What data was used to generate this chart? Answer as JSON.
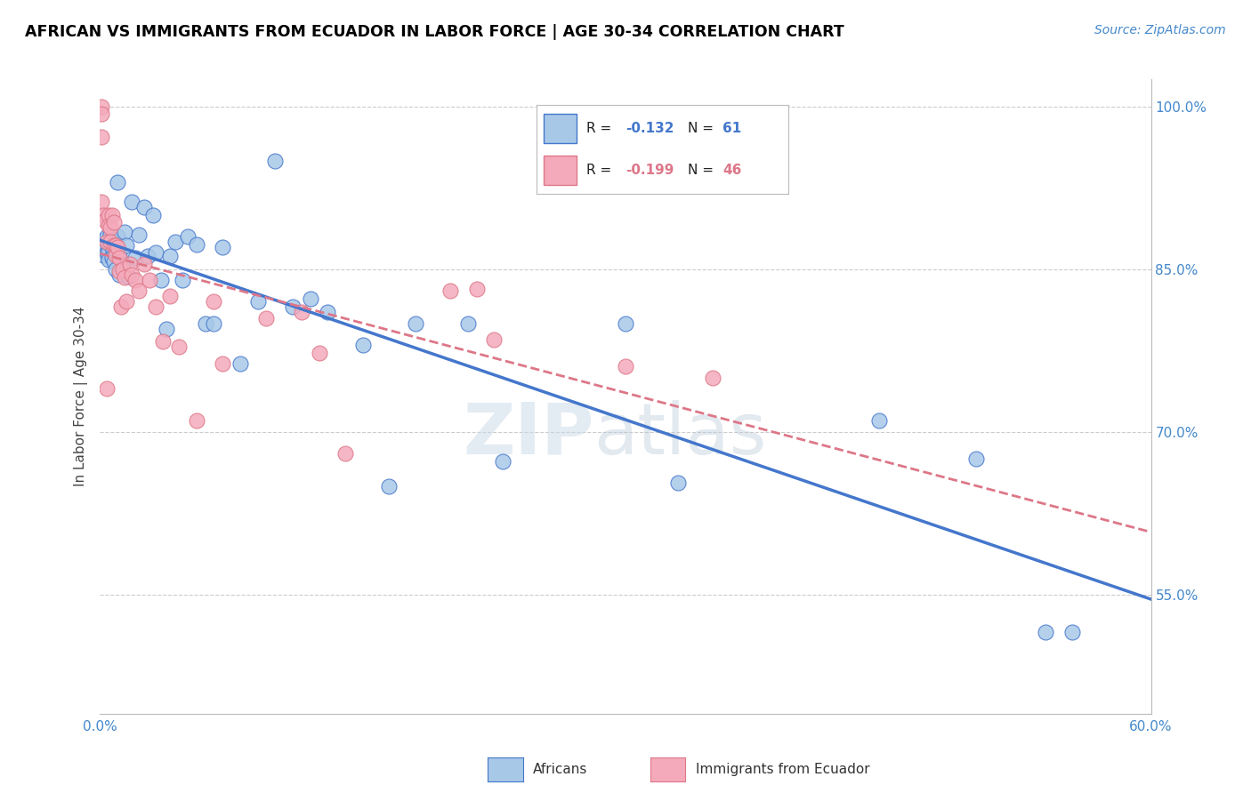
{
  "title": "AFRICAN VS IMMIGRANTS FROM ECUADOR IN LABOR FORCE | AGE 30-34 CORRELATION CHART",
  "source": "Source: ZipAtlas.com",
  "ylabel": "In Labor Force | Age 30-34",
  "xlim": [
    0.0,
    0.6
  ],
  "ylim": [
    0.44,
    1.025
  ],
  "x_ticks": [
    0.0,
    0.1,
    0.2,
    0.3,
    0.4,
    0.5,
    0.6
  ],
  "x_tick_labels": [
    "0.0%",
    "",
    "",
    "",
    "",
    "",
    "60.0%"
  ],
  "y_ticks_right": [
    0.55,
    0.7,
    0.85,
    1.0
  ],
  "y_tick_labels_right": [
    "55.0%",
    "70.0%",
    "85.0%",
    "100.0%"
  ],
  "legend_blue_r": "-0.132",
  "legend_blue_n": "61",
  "legend_pink_r": "-0.199",
  "legend_pink_n": "46",
  "blue_color": "#a8c8e8",
  "pink_color": "#f4aabb",
  "trendline_blue": "#4477cc",
  "trendline_pink": "#dd7788",
  "watermark_zip": "ZIP",
  "watermark_atlas": "atlas",
  "blue_points_x": [
    0.001,
    0.001,
    0.002,
    0.002,
    0.003,
    0.003,
    0.004,
    0.004,
    0.005,
    0.005,
    0.005,
    0.006,
    0.006,
    0.007,
    0.007,
    0.008,
    0.008,
    0.009,
    0.009,
    0.01,
    0.01,
    0.011,
    0.011,
    0.013,
    0.014,
    0.015,
    0.016,
    0.018,
    0.02,
    0.022,
    0.025,
    0.027,
    0.03,
    0.032,
    0.035,
    0.038,
    0.04,
    0.043,
    0.047,
    0.05,
    0.055,
    0.06,
    0.065,
    0.07,
    0.08,
    0.09,
    0.1,
    0.11,
    0.12,
    0.13,
    0.15,
    0.165,
    0.18,
    0.21,
    0.23,
    0.3,
    0.33,
    0.445,
    0.5,
    0.54,
    0.555
  ],
  "blue_points_y": [
    0.875,
    0.87,
    0.868,
    0.863,
    0.871,
    0.878,
    0.88,
    0.865,
    0.873,
    0.866,
    0.859,
    0.882,
    0.873,
    0.87,
    0.86,
    0.857,
    0.875,
    0.872,
    0.85,
    0.93,
    0.88,
    0.863,
    0.845,
    0.855,
    0.884,
    0.872,
    0.843,
    0.912,
    0.86,
    0.882,
    0.907,
    0.862,
    0.9,
    0.865,
    0.84,
    0.795,
    0.862,
    0.875,
    0.84,
    0.88,
    0.873,
    0.8,
    0.8,
    0.87,
    0.763,
    0.82,
    0.95,
    0.815,
    0.823,
    0.81,
    0.78,
    0.65,
    0.8,
    0.8,
    0.673,
    0.8,
    0.653,
    0.71,
    0.675,
    0.515,
    0.515
  ],
  "pink_points_x": [
    0.001,
    0.001,
    0.001,
    0.001,
    0.002,
    0.003,
    0.004,
    0.004,
    0.005,
    0.005,
    0.006,
    0.006,
    0.007,
    0.008,
    0.008,
    0.009,
    0.009,
    0.01,
    0.011,
    0.011,
    0.012,
    0.013,
    0.014,
    0.015,
    0.017,
    0.018,
    0.02,
    0.022,
    0.025,
    0.028,
    0.032,
    0.036,
    0.04,
    0.045,
    0.055,
    0.065,
    0.07,
    0.095,
    0.115,
    0.125,
    0.14,
    0.2,
    0.215,
    0.225,
    0.3,
    0.35
  ],
  "pink_points_y": [
    1.0,
    0.993,
    0.972,
    0.912,
    0.9,
    0.895,
    0.875,
    0.74,
    0.9,
    0.89,
    0.888,
    0.875,
    0.9,
    0.893,
    0.872,
    0.872,
    0.863,
    0.87,
    0.86,
    0.848,
    0.815,
    0.85,
    0.842,
    0.82,
    0.855,
    0.845,
    0.84,
    0.83,
    0.855,
    0.84,
    0.815,
    0.783,
    0.825,
    0.778,
    0.71,
    0.82,
    0.763,
    0.805,
    0.81,
    0.773,
    0.68,
    0.83,
    0.832,
    0.785,
    0.76,
    0.75
  ]
}
